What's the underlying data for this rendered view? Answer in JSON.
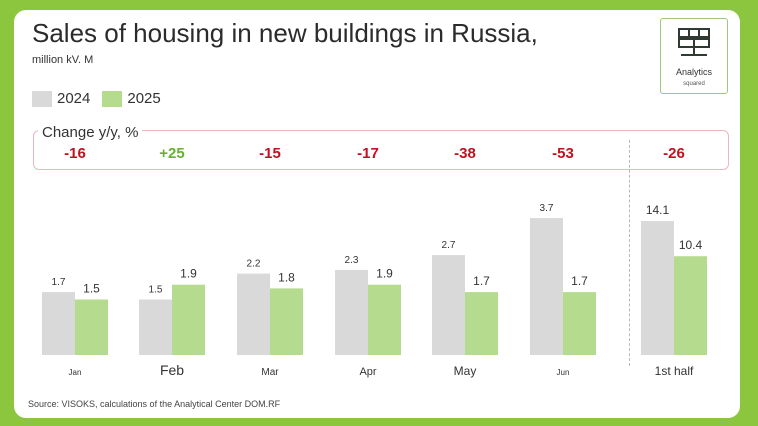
{
  "title": "Sales of housing in new buildings in Russia,",
  "subtitle": "million kV. M",
  "logo": {
    "line1": "Analytics",
    "line2": "squared"
  },
  "legend": [
    {
      "label": "2024",
      "color": "#d9d9d9"
    },
    {
      "label": "2025",
      "color": "#b5dc8e"
    }
  ],
  "change": {
    "label": "Change y/y, %",
    "values": [
      "-16",
      "+25",
      "-15",
      "-17",
      "-38",
      "-53",
      "-26"
    ],
    "colors": {
      "negative": "#c0111f",
      "positive": "#66b032"
    }
  },
  "chart_data": {
    "type": "bar",
    "categories": [
      "Jan",
      "Feb",
      "Mar",
      "Apr",
      "May",
      "Jun",
      "1st half"
    ],
    "series": [
      {
        "name": "2024",
        "values": [
          1.7,
          1.5,
          2.2,
          2.3,
          2.7,
          3.7,
          14.1
        ]
      },
      {
        "name": "2025",
        "values": [
          1.5,
          1.9,
          1.8,
          1.9,
          1.7,
          1.7,
          10.4
        ]
      }
    ],
    "value_labels": [
      [
        "1.7",
        "1.5",
        "2.2",
        "2.3",
        "2.7",
        "3.7",
        "14.1"
      ],
      [
        "1.5",
        "1.9",
        "1.8",
        "1.9",
        "1.7",
        "1.7",
        "10.4"
      ]
    ],
    "title": "Sales of housing in new buildings in Russia,",
    "ylabel": "million kV. M",
    "note": "1st half shown on separate scale",
    "grid": false,
    "legend_position": "top-left"
  },
  "source": "Source: VISOKS, calculations of the Analytical Center DOM.RF"
}
